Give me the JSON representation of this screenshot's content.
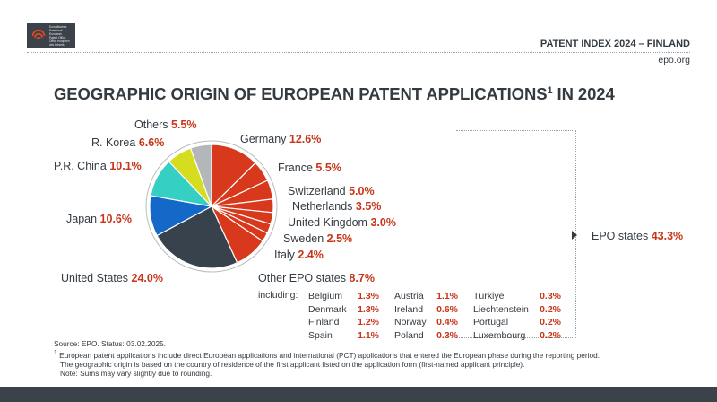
{
  "header": {
    "logo_lines": [
      "Europäisches",
      "Patentamt",
      "European",
      "Patent Office",
      "Office européen",
      "des brevets"
    ],
    "report_title": "PATENT INDEX 2024 – FINLAND",
    "url": "epo.org"
  },
  "title": {
    "text": "GEOGRAPHIC ORIGIN OF EUROPEAN PATENT APPLICATIONS",
    "sup": "1",
    "suffix": " IN 2024"
  },
  "chart_data": {
    "type": "pie",
    "title": "GEOGRAPHIC ORIGIN OF EUROPEAN PATENT APPLICATIONS IN 2024",
    "unit": "%",
    "slices": [
      {
        "label": "Germany",
        "value": 12.6,
        "value_text": "12.6%",
        "color": "#d8381c"
      },
      {
        "label": "France",
        "value": 5.5,
        "value_text": "5.5%",
        "color": "#d8381c"
      },
      {
        "label": "Switzerland",
        "value": 5.0,
        "value_text": "5.0%",
        "color": "#d8381c"
      },
      {
        "label": "Netherlands",
        "value": 3.5,
        "value_text": "3.5%",
        "color": "#d8381c"
      },
      {
        "label": "United Kingdom",
        "value": 3.0,
        "value_text": "3.0%",
        "color": "#d8381c"
      },
      {
        "label": "Sweden",
        "value": 2.5,
        "value_text": "2.5%",
        "color": "#d8381c"
      },
      {
        "label": "Italy",
        "value": 2.4,
        "value_text": "2.4%",
        "color": "#d8381c"
      },
      {
        "label": "Other EPO states",
        "value": 8.7,
        "value_text": "8.7%",
        "color": "#d8381c"
      },
      {
        "label": "United States",
        "value": 24.0,
        "value_text": "24.0%",
        "color": "#37424d"
      },
      {
        "label": "Japan",
        "value": 10.6,
        "value_text": "10.6%",
        "color": "#1468c8"
      },
      {
        "label": "P.R. China",
        "value": 10.1,
        "value_text": "10.1%",
        "color": "#36cfc4"
      },
      {
        "label": "R. Korea",
        "value": 6.6,
        "value_text": "6.6%",
        "color": "#d6dc1e"
      },
      {
        "label": "Others",
        "value": 5.5,
        "value_text": "5.5%",
        "color": "#b4b7ba"
      }
    ],
    "group": {
      "label": "EPO states",
      "value": 43.3,
      "value_text": "43.3%"
    },
    "including_label": "including:",
    "other_epo_breakdown": [
      [
        {
          "label": "Belgium",
          "value": 1.3,
          "value_text": "1.3%"
        },
        {
          "label": "Denmark",
          "value": 1.3,
          "value_text": "1.3%"
        },
        {
          "label": "Finland",
          "value": 1.2,
          "value_text": "1.2%"
        },
        {
          "label": "Spain",
          "value": 1.1,
          "value_text": "1.1%"
        }
      ],
      [
        {
          "label": "Austria",
          "value": 1.1,
          "value_text": "1.1%"
        },
        {
          "label": "Ireland",
          "value": 0.6,
          "value_text": "0.6%"
        },
        {
          "label": "Norway",
          "value": 0.4,
          "value_text": "0.4%"
        },
        {
          "label": "Poland",
          "value": 0.3,
          "value_text": "0.3%"
        }
      ],
      [
        {
          "label": "Türkiye",
          "value": 0.3,
          "value_text": "0.3%"
        },
        {
          "label": "Liechtenstein",
          "value": 0.2,
          "value_text": "0.2%"
        },
        {
          "label": "Portugal",
          "value": 0.2,
          "value_text": "0.2%"
        },
        {
          "label": "Luxembourg",
          "value": 0.2,
          "value_text": "0.2%"
        }
      ]
    ]
  },
  "notes": {
    "source": "Source: EPO. Status: 03.02.2025.",
    "footnote_mark": "1",
    "footnote_line1": "European patent applications include direct European applications and international (PCT) applications that entered the European phase during the reporting period.",
    "footnote_line2": "The geographic origin is based on the country of residence of the first applicant listed on the application form (first-named applicant principle).",
    "footnote_line3": "Note: Sums may vary slightly due to rounding."
  }
}
